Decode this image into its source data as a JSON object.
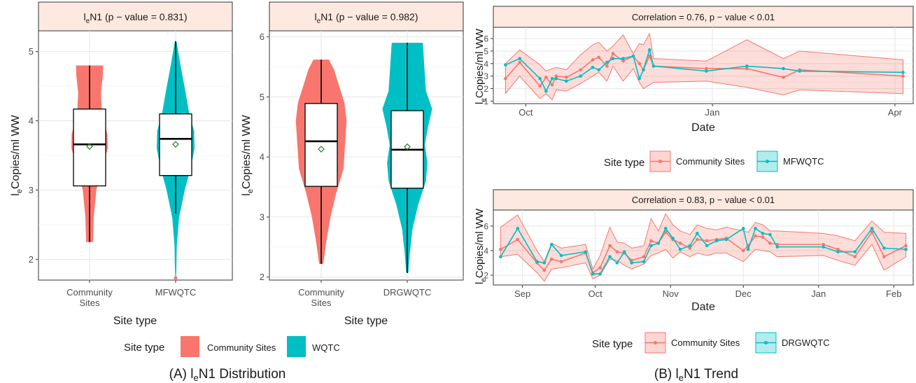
{
  "figure": {
    "caption_a_prefix": "(A) l",
    "caption_a_sub": "e",
    "caption_a_suffix": "N1 Distribution",
    "caption_b_prefix": "(B) l",
    "caption_b_sub": "e",
    "caption_b_suffix": "N1 Trend"
  },
  "colors": {
    "community": "#F8766D",
    "wqtc": "#00BFC4",
    "strip_fill": "#FDE9DF",
    "band_fill": "#F8766D",
    "mean_marker": "#2E7D32",
    "outlier": "#F8766D"
  },
  "chart_data": [
    {
      "type": "violin",
      "panel": "A-left",
      "strip_prefix": "l",
      "strip_sub": "e",
      "strip_suffix": "N1 (p − value = 0.831)",
      "xlabel": "Site type",
      "ylabel_prefix": "l",
      "ylabel_sub": "e",
      "ylabel_suffix": "Copies/ml WW",
      "ylim": [
        1.7,
        5.3
      ],
      "yticks": [
        "2",
        "3",
        "4",
        "5"
      ],
      "categories": [
        {
          "label_lines": [
            "Community",
            "Sites"
          ],
          "color_key": "community",
          "min": 2.25,
          "q1": 3.06,
          "median": 3.66,
          "q3": 4.17,
          "max": 4.8,
          "mean": 3.63,
          "outliers": [],
          "density": [
            [
              2.25,
              0.18
            ],
            [
              2.6,
              0.22
            ],
            [
              3.0,
              0.36
            ],
            [
              3.3,
              0.62
            ],
            [
              3.6,
              0.96
            ],
            [
              3.8,
              0.95
            ],
            [
              4.1,
              0.66
            ],
            [
              4.4,
              0.6
            ],
            [
              4.65,
              0.7
            ],
            [
              4.8,
              0.72
            ]
          ]
        },
        {
          "label_lines": [
            "MFWQTC"
          ],
          "color_key": "wqtc",
          "min": 2.66,
          "q1": 3.21,
          "median": 3.74,
          "q3": 4.1,
          "max": 5.15,
          "mean": 3.66,
          "outliers": [
            1.73
          ],
          "density": [
            [
              1.73,
              0.02
            ],
            [
              1.9,
              0.04
            ],
            [
              2.2,
              0.06
            ],
            [
              2.6,
              0.18
            ],
            [
              3.0,
              0.48
            ],
            [
              3.3,
              0.78
            ],
            [
              3.6,
              1.0
            ],
            [
              3.85,
              0.98
            ],
            [
              4.1,
              0.72
            ],
            [
              4.45,
              0.5
            ],
            [
              4.8,
              0.26
            ],
            [
              5.15,
              0.04
            ]
          ]
        }
      ]
    },
    {
      "type": "violin",
      "panel": "A-right",
      "strip_prefix": "l",
      "strip_sub": "e",
      "strip_suffix": "N1 (p − value = 0.982)",
      "xlabel": "Site type",
      "ylabel_prefix": "l",
      "ylabel_sub": "e",
      "ylabel_suffix": "Copies/ml WW",
      "ylim": [
        1.95,
        6.1
      ],
      "yticks": [
        "2",
        "3",
        "4",
        "5",
        "6"
      ],
      "categories": [
        {
          "label_lines": [
            "Community",
            "Sites"
          ],
          "color_key": "community",
          "min": 2.22,
          "q1": 3.51,
          "median": 4.26,
          "q3": 4.89,
          "max": 5.62,
          "mean": 4.13,
          "outliers": [],
          "density": [
            [
              2.22,
              0.08
            ],
            [
              2.6,
              0.2
            ],
            [
              3.0,
              0.36
            ],
            [
              3.4,
              0.58
            ],
            [
              3.8,
              0.86
            ],
            [
              4.2,
              0.92
            ],
            [
              4.6,
              0.98
            ],
            [
              4.9,
              0.9
            ],
            [
              5.2,
              0.68
            ],
            [
              5.45,
              0.5
            ],
            [
              5.62,
              0.3
            ]
          ]
        },
        {
          "label_lines": [
            "DRGWQTC"
          ],
          "color_key": "wqtc",
          "min": 2.07,
          "q1": 3.48,
          "median": 4.12,
          "q3": 4.77,
          "max": 5.9,
          "mean": 4.17,
          "outliers": [],
          "density": [
            [
              2.07,
              0.04
            ],
            [
              2.4,
              0.1
            ],
            [
              2.8,
              0.2
            ],
            [
              3.2,
              0.42
            ],
            [
              3.6,
              0.72
            ],
            [
              3.9,
              0.78
            ],
            [
              4.2,
              0.68
            ],
            [
              4.5,
              0.8
            ],
            [
              4.8,
              0.96
            ],
            [
              5.1,
              0.72
            ],
            [
              5.5,
              0.66
            ],
            [
              5.9,
              0.6
            ]
          ]
        }
      ]
    },
    {
      "type": "line",
      "panel": "B-top",
      "strip_text": "Correlation = 0.76, p − value < 0.01",
      "xlabel": "Date",
      "ylabel_prefix": "l",
      "ylabel_sub": "e",
      "ylabel_suffix": "Copies/ml WW",
      "xlim": [
        "2021-09-15",
        "2022-04-10"
      ],
      "ylim": [
        0.8,
        6.9
      ],
      "yticks": [
        1,
        2,
        3,
        4,
        5,
        6
      ],
      "xticks": [
        {
          "date": "2021-10-01",
          "label": "Oct"
        },
        {
          "date": "2022-01-01",
          "label": "Jan"
        },
        {
          "date": "2022-04-01",
          "label": "Apr"
        }
      ],
      "series": [
        {
          "name": "Community Sites",
          "color_key": "community",
          "x": [
            "2021-09-21",
            "2021-09-28",
            "2021-10-08",
            "2021-10-11",
            "2021-10-14",
            "2021-10-16",
            "2021-10-21",
            "2021-10-28",
            "2021-11-03",
            "2021-11-06",
            "2021-11-10",
            "2021-11-13",
            "2021-11-18",
            "2021-11-23",
            "2021-11-26",
            "2021-11-28",
            "2021-12-01",
            "2021-12-03",
            "2021-12-29",
            "2022-01-18",
            "2022-02-05",
            "2022-02-13",
            "2022-04-05"
          ],
          "y": [
            2.8,
            4.1,
            2.2,
            2.9,
            2.3,
            3.0,
            2.9,
            3.5,
            4.3,
            4.5,
            3.8,
            4.8,
            4.2,
            4.6,
            4.0,
            3.5,
            4.6,
            3.8,
            3.6,
            3.6,
            2.9,
            3.5,
            3.0
          ],
          "lower": [
            1.6,
            3.0,
            1.2,
            1.6,
            1.1,
            1.9,
            1.8,
            2.4,
            3.0,
            3.3,
            2.6,
            3.8,
            2.6,
            3.6,
            2.5,
            2.0,
            2.3,
            2.5,
            2.6,
            2.1,
            1.5,
            1.9,
            1.6
          ],
          "upper": [
            4.0,
            5.1,
            3.9,
            3.4,
            3.6,
            3.7,
            3.5,
            4.7,
            5.5,
            5.7,
            5.0,
            5.4,
            6.3,
            4.8,
            5.6,
            5.5,
            6.4,
            4.4,
            4.2,
            5.9,
            4.4,
            5.0,
            4.3
          ]
        },
        {
          "name": "MFWQTC",
          "color_key": "wqtc",
          "x": [
            "2021-09-21",
            "2021-09-28",
            "2021-10-08",
            "2021-10-11",
            "2021-10-14",
            "2021-10-16",
            "2021-10-21",
            "2021-10-28",
            "2021-11-03",
            "2021-11-06",
            "2021-11-10",
            "2021-11-13",
            "2021-11-18",
            "2021-11-23",
            "2021-11-26",
            "2021-11-28",
            "2021-12-01",
            "2021-12-03",
            "2021-12-29",
            "2022-01-18",
            "2022-02-05",
            "2022-02-13",
            "2022-04-05"
          ],
          "y": [
            3.9,
            4.4,
            2.8,
            1.8,
            2.8,
            2.8,
            2.6,
            3.0,
            3.7,
            3.5,
            4.1,
            4.4,
            4.4,
            4.6,
            2.8,
            3.5,
            5.1,
            3.8,
            3.4,
            3.8,
            3.6,
            3.4,
            3.3
          ],
          "lower": [],
          "upper": []
        }
      ]
    },
    {
      "type": "line",
      "panel": "B-bottom",
      "strip_text": "Correlation = 0.83, p − value < 0.01",
      "xlabel": "Date",
      "ylabel_prefix": "l",
      "ylabel_sub": "e",
      "ylabel_suffix": "Copies/ml WW",
      "xlim": [
        "2021-08-20",
        "2022-02-09"
      ],
      "ylim": [
        1.2,
        7.3
      ],
      "yticks": [
        2,
        4,
        6
      ],
      "xticks": [
        {
          "date": "2021-09-01",
          "label": "Sep"
        },
        {
          "date": "2021-10-01",
          "label": "Oct"
        },
        {
          "date": "2021-11-01",
          "label": "Nov"
        },
        {
          "date": "2021-12-01",
          "label": "Dec"
        },
        {
          "date": "2022-01-01",
          "label": "Jan"
        },
        {
          "date": "2022-02-01",
          "label": "Feb"
        }
      ],
      "series": [
        {
          "name": "Community Sites",
          "color_key": "community",
          "x": [
            "2021-08-23",
            "2021-08-30",
            "2021-09-07",
            "2021-09-10",
            "2021-09-13",
            "2021-09-17",
            "2021-09-27",
            "2021-09-30",
            "2021-10-03",
            "2021-10-07",
            "2021-10-10",
            "2021-10-13",
            "2021-10-16",
            "2021-10-21",
            "2021-10-24",
            "2021-10-27",
            "2021-10-30",
            "2021-11-02",
            "2021-11-05",
            "2021-11-09",
            "2021-11-12",
            "2021-11-16",
            "2021-11-20",
            "2021-11-24",
            "2021-12-01",
            "2021-12-03",
            "2021-12-06",
            "2021-12-09",
            "2021-12-12",
            "2021-12-15",
            "2022-01-03",
            "2022-01-09",
            "2022-01-16",
            "2022-01-23",
            "2022-01-28",
            "2022-02-06"
          ],
          "y": [
            4.1,
            4.9,
            3.0,
            2.4,
            3.3,
            3.1,
            3.8,
            2.2,
            2.6,
            4.4,
            3.9,
            3.8,
            3.2,
            3.5,
            4.8,
            4.6,
            5.5,
            4.9,
            4.6,
            4.2,
            4.9,
            4.8,
            4.9,
            5.0,
            4.0,
            4.4,
            5.2,
            5.1,
            4.6,
            4.5,
            4.5,
            4.1,
            3.5,
            5.5,
            3.5,
            4.4
          ],
          "lower": [
            3.5,
            3.7,
            2.2,
            1.5,
            2.5,
            2.6,
            3.0,
            1.7,
            2.0,
            3.3,
            3.2,
            2.8,
            2.5,
            2.9,
            3.6,
            3.8,
            4.1,
            3.4,
            3.9,
            3.5,
            3.8,
            3.6,
            3.8,
            3.8,
            3.1,
            3.5,
            4.1,
            4.0,
            3.9,
            3.5,
            3.6,
            3.2,
            2.8,
            4.5,
            2.4,
            3.5
          ],
          "upper": [
            5.9,
            6.9,
            4.0,
            3.1,
            4.6,
            4.2,
            4.5,
            2.5,
            3.6,
            5.9,
            4.7,
            4.6,
            4.2,
            4.4,
            6.6,
            5.6,
            7.0,
            6.1,
            5.6,
            5.3,
            6.1,
            5.8,
            5.7,
            5.9,
            5.6,
            5.5,
            6.3,
            6.1,
            5.6,
            5.6,
            5.4,
            5.2,
            4.8,
            6.4,
            5.5,
            5.4
          ]
        },
        {
          "name": "DRGWQTC",
          "color_key": "wqtc",
          "x": [
            "2021-08-23",
            "2021-08-30",
            "2021-09-07",
            "2021-09-10",
            "2021-09-13",
            "2021-09-17",
            "2021-09-27",
            "2021-09-30",
            "2021-10-03",
            "2021-10-07",
            "2021-10-10",
            "2021-10-13",
            "2021-10-16",
            "2021-10-21",
            "2021-10-24",
            "2021-10-27",
            "2021-10-30",
            "2021-11-02",
            "2021-11-05",
            "2021-11-09",
            "2021-11-12",
            "2021-11-16",
            "2021-11-20",
            "2021-11-24",
            "2021-12-01",
            "2021-12-03",
            "2021-12-06",
            "2021-12-09",
            "2021-12-12",
            "2021-12-15",
            "2022-01-03",
            "2022-01-09",
            "2022-01-16",
            "2022-01-23",
            "2022-01-28",
            "2022-02-06"
          ],
          "y": [
            3.5,
            5.8,
            3.1,
            3.0,
            4.5,
            3.6,
            3.9,
            2.1,
            2.1,
            3.5,
            3.0,
            3.9,
            3.0,
            3.1,
            4.4,
            4.6,
            5.8,
            5.0,
            4.1,
            4.4,
            5.4,
            4.4,
            4.8,
            4.9,
            5.8,
            4.1,
            5.8,
            5.4,
            5.3,
            4.3,
            4.3,
            3.9,
            3.9,
            5.8,
            4.2,
            4.1
          ],
          "lower": [],
          "upper": []
        }
      ]
    }
  ],
  "legends": {
    "a": {
      "title": "Site type",
      "items": [
        "Community Sites",
        "WQTC"
      ]
    },
    "b_top": {
      "title": "Site type",
      "items": [
        "Community Sites",
        "MFWQTC"
      ]
    },
    "b_bottom": {
      "title": "Site type",
      "items": [
        "Community Sites",
        "DRGWQTC"
      ]
    }
  }
}
